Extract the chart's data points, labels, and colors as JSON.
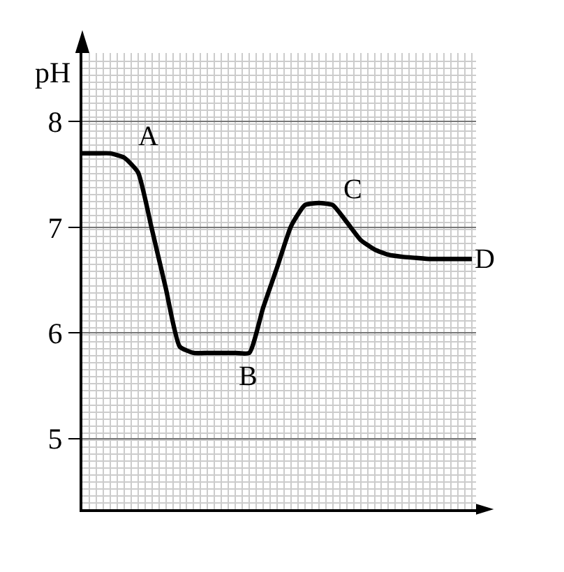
{
  "chart_data": {
    "type": "line",
    "ylabel": "pH",
    "categories": [
      null,
      null,
      null,
      null,
      null,
      null,
      null,
      null,
      null,
      null,
      null,
      null,
      null,
      null,
      null,
      null,
      null,
      null,
      null,
      null,
      null,
      null,
      null,
      null,
      null,
      null,
      null,
      null,
      null
    ],
    "values": [
      7.7,
      7.7,
      7.7,
      7.66,
      7.52,
      6.98,
      6.42,
      5.87,
      5.81,
      5.81,
      5.81,
      5.81,
      5.81,
      6.24,
      6.62,
      7.01,
      7.21,
      7.23,
      7.21,
      7.05,
      6.88,
      6.79,
      6.74,
      6.72,
      6.71,
      6.7,
      6.7,
      6.7,
      6.7
    ],
    "color": "#000000",
    "ylim": [
      4.33,
      8.65
    ],
    "yticks": [
      5,
      6,
      7,
      8
    ],
    "grid": true,
    "tick_labels": "y",
    "marker": "none",
    "line_style": "solid",
    "annotations": [
      "A",
      "B",
      "C",
      "D"
    ]
  }
}
